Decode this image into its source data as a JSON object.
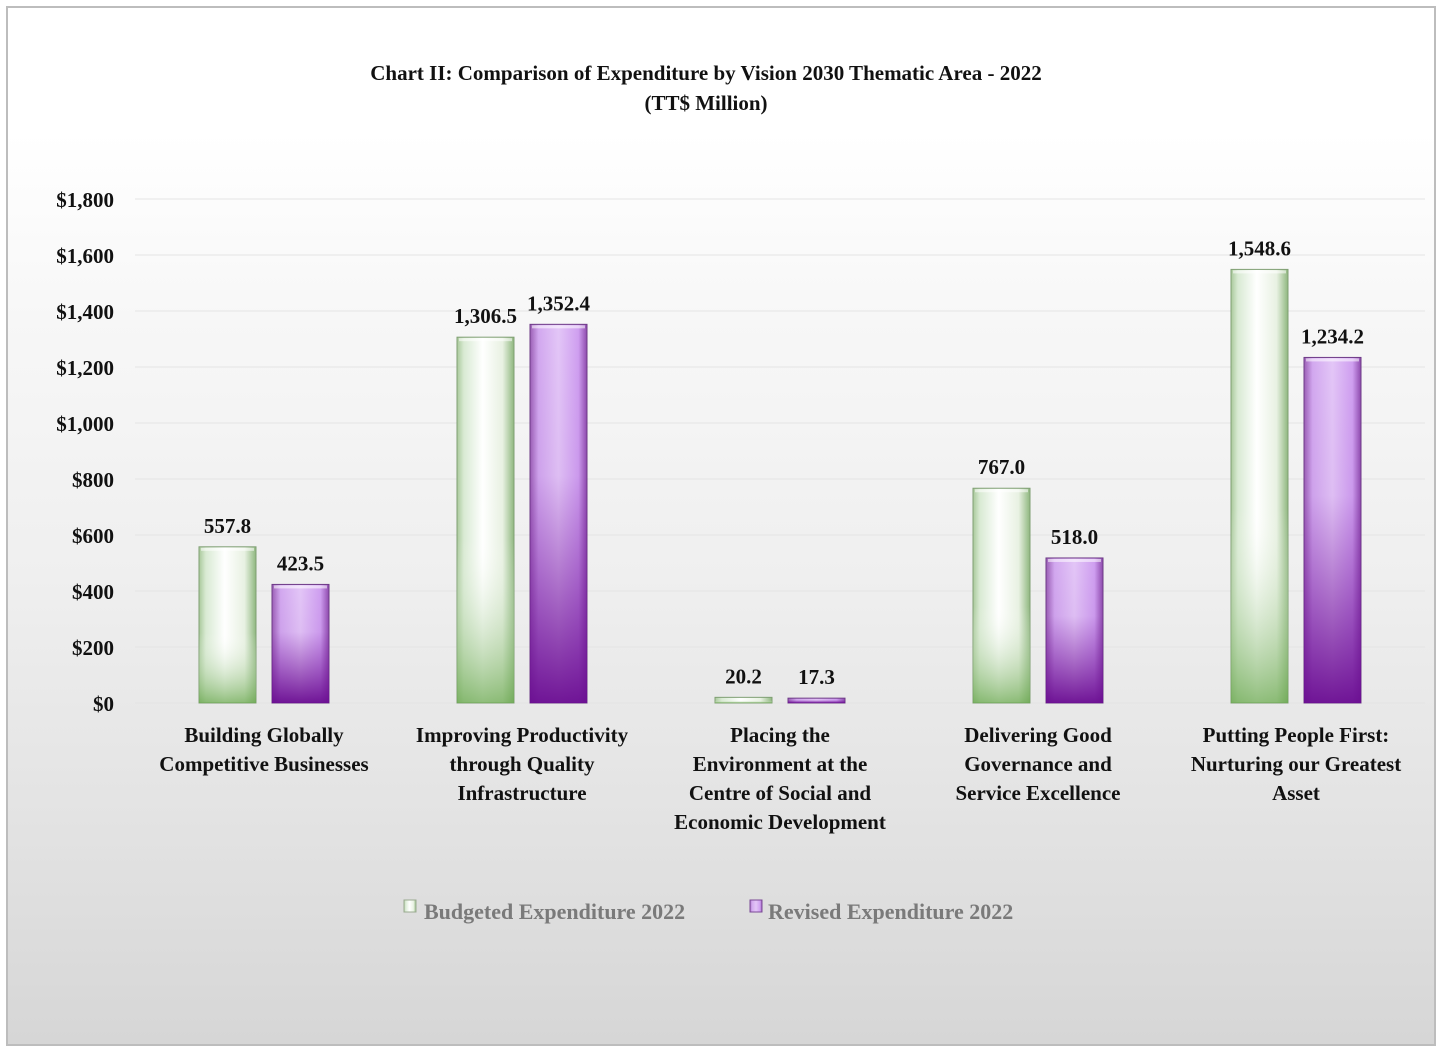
{
  "chart_data": {
    "type": "bar",
    "title": "Chart II: Comparison of Expenditure by Vision 2030 Thematic Area - 2022",
    "subtitle": "(TT$ Million)",
    "categories": [
      [
        "Building Globally",
        "Competitive Businesses"
      ],
      [
        "Improving Productivity",
        "through Quality",
        "Infrastructure"
      ],
      [
        "Placing the",
        "Environment at the",
        "Centre of Social and",
        "Economic Development"
      ],
      [
        "Delivering Good",
        "Governance and",
        "Service Excellence"
      ],
      [
        "Putting People First:",
        "Nurturing our Greatest",
        "Asset"
      ]
    ],
    "series": [
      {
        "name": "Budgeted Expenditure 2022",
        "values": [
          557.8,
          1306.5,
          20.2,
          767.0,
          1548.6
        ],
        "labels": [
          "557.8",
          "1,306.5",
          "20.2",
          "767.0",
          "1,548.6"
        ],
        "color": "#6aa84f"
      },
      {
        "name": "Revised Expenditure 2022",
        "values": [
          423.5,
          1352.4,
          17.3,
          518.0,
          1234.2
        ],
        "labels": [
          "423.5",
          "1,352.4",
          "17.3",
          "518.0",
          "1,234.2"
        ],
        "color": "#7b1fa2"
      }
    ],
    "ylim": [
      0,
      1800
    ],
    "yticks": [
      0,
      200,
      400,
      600,
      800,
      1000,
      1200,
      1400,
      1600,
      1800
    ],
    "ytick_labels": [
      "$0",
      "$200",
      "$400",
      "$600",
      "$800",
      "$1,000",
      "$1,200",
      "$1,400",
      "$1,600",
      "$1,800"
    ],
    "grid": true,
    "legend_position": "bottom"
  }
}
